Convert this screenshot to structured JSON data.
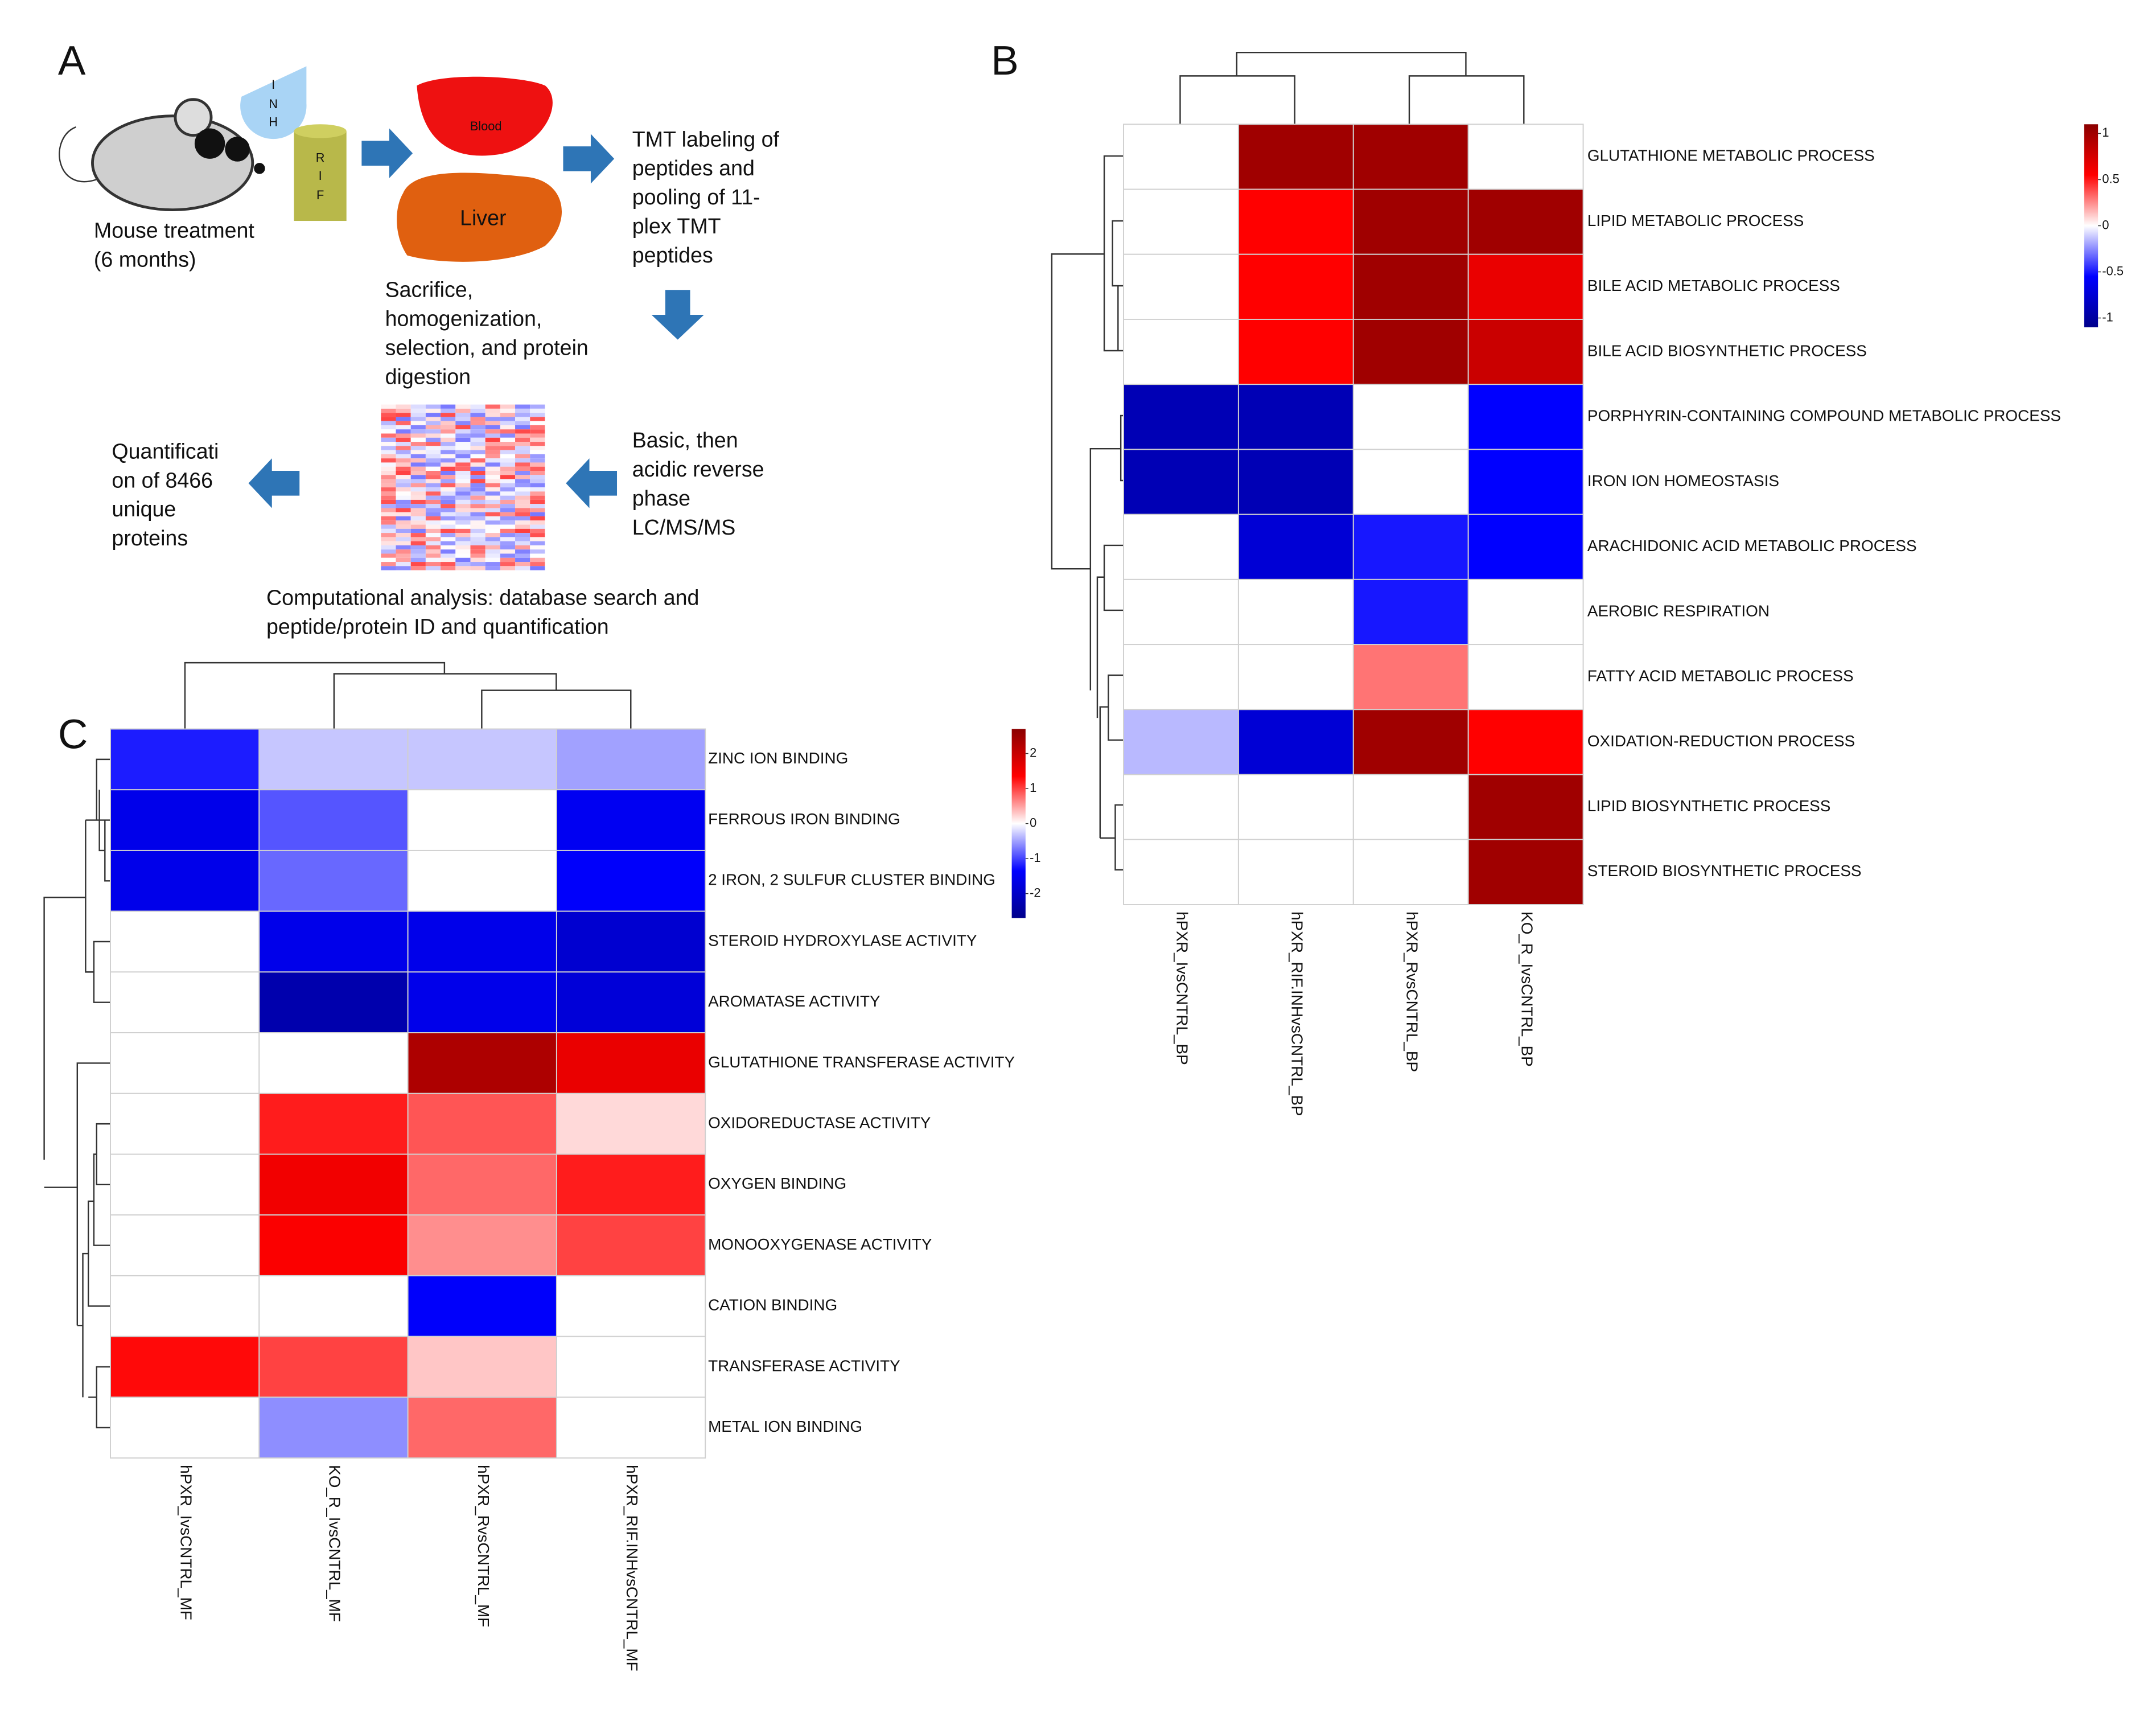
{
  "panel_a": {
    "label": "A",
    "inh": [
      "I",
      "N",
      "H"
    ],
    "rif": [
      "R",
      "I",
      "F"
    ],
    "blood": "Blood",
    "liver": "Liver",
    "treatment": [
      "Mouse treatment",
      "(6 months)"
    ],
    "tmt": [
      "TMT labeling of",
      "peptides and",
      "pooling of 11-",
      "plex TMT",
      "peptides"
    ],
    "sacrifice": [
      "Sacrifice,",
      "homogenization,",
      "selection, and protein",
      "digestion"
    ],
    "lcms": [
      "Basic, then",
      "acidic reverse",
      "phase",
      "LC/MS/MS"
    ],
    "quant": [
      "Quantificati",
      "on of 8466",
      "unique",
      "proteins"
    ],
    "computational": [
      "Computational analysis: database search and",
      "peptide/protein ID and quantification"
    ]
  },
  "chart_data": [
    {
      "type": "heatmap",
      "panel_label": "B",
      "x_categories": [
        "hPXR_IvsCNTRL_BP",
        "hPXR_RIF.INHvsCNTRL_BP",
        "hPXR_RvsCNTRL_BP",
        "KO_R_IvsCNTRL_BP"
      ],
      "y_categories": [
        "GLUTATHIONE METABOLIC PROCESS",
        "LIPID METABOLIC PROCESS",
        "BILE ACID METABOLIC PROCESS",
        "BILE ACID BIOSYNTHETIC PROCESS",
        "PORPHYRIN-CONTAINING COMPOUND METABOLIC PROCESS",
        "IRON ION HOMEOSTASIS",
        "ARACHIDONIC ACID METABOLIC PROCESS",
        "AEROBIC RESPIRATION",
        "FATTY ACID METABOLIC PROCESS",
        "OXIDATION-REDUCTION PROCESS",
        "LIPID BIOSYNTHETIC PROCESS",
        "STEROID BIOSYNTHETIC PROCESS"
      ],
      "values": [
        [
          0,
          1,
          1,
          0
        ],
        [
          0,
          0.55,
          1,
          1
        ],
        [
          0,
          0.55,
          1,
          0.65
        ],
        [
          0,
          0.55,
          1,
          0.8
        ],
        [
          -0.9,
          -0.9,
          0,
          -0.55
        ],
        [
          -0.9,
          -0.9,
          0,
          -0.55
        ],
        [
          0,
          -0.75,
          -0.5,
          -0.55
        ],
        [
          0,
          0,
          -0.5,
          0
        ],
        [
          0,
          0,
          0.3,
          0
        ],
        [
          -0.15,
          -0.75,
          1,
          0.55
        ],
        [
          0,
          0,
          0,
          1
        ],
        [
          0,
          0,
          0,
          1
        ]
      ],
      "clim": [
        -1.1,
        1.1
      ],
      "cticks": [
        1,
        0.5,
        0,
        -0.5,
        -1
      ],
      "colors": [
        "#00008b",
        "#0000ff",
        "#ffffff",
        "#ff0000",
        "#8b0000"
      ]
    },
    {
      "type": "heatmap",
      "panel_label": "C",
      "x_categories": [
        "hPXR_IvsCNTRL_MF",
        "KO_R_IvsCNTRL_MF",
        "hPXR_RvsCNTRL_MF",
        "hPXR_RIF.INHvsCNTRL_MF"
      ],
      "y_categories": [
        "ZINC ION BINDING",
        "FERROUS IRON BINDING",
        "2 IRON, 2 SULFUR CLUSTER BINDING",
        "STEROID HYDROXYLASE ACTIVITY",
        "AROMATASE ACTIVITY",
        "GLUTATHIONE TRANSFERASE ACTIVITY",
        "OXIDOREDUCTASE ACTIVITY",
        "OXYGEN BINDING",
        "MONOOXYGENASE ACTIVITY",
        "CATION BINDING",
        "TRANSFERASE ACTIVITY",
        "METAL ION BINDING"
      ],
      "values": [
        [
          -1.2,
          -0.3,
          -0.3,
          -0.5
        ],
        [
          -1.6,
          -0.9,
          0,
          -1.5
        ],
        [
          -1.6,
          -0.8,
          0,
          -1.4
        ],
        [
          0,
          -1.6,
          -1.6,
          -1.9
        ],
        [
          0,
          -2.3,
          -1.6,
          -1.8
        ],
        [
          0,
          0,
          2.3,
          1.6
        ],
        [
          0,
          1.2,
          0.9,
          0.2
        ],
        [
          0,
          1.5,
          0.8,
          1.2
        ],
        [
          0,
          1.4,
          0.6,
          1.0
        ],
        [
          0,
          0,
          -1.4,
          0
        ],
        [
          1.3,
          1.0,
          0.3,
          0
        ],
        [
          0,
          -0.6,
          0.8,
          0
        ]
      ],
      "clim": [
        -2.7,
        2.7
      ],
      "cticks": [
        2,
        1,
        0,
        -1,
        -2
      ],
      "colors": [
        "#00008b",
        "#0000ff",
        "#ffffff",
        "#ff0000",
        "#8b0000"
      ]
    }
  ]
}
